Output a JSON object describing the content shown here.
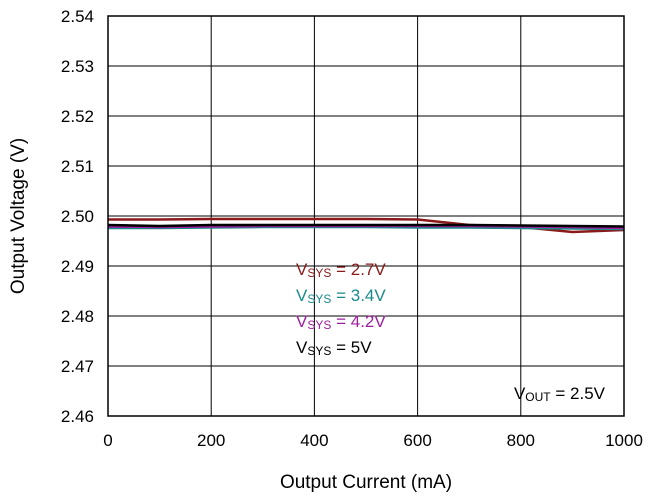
{
  "chart_data": {
    "type": "line",
    "title": "",
    "xlabel": "Output Current (mA)",
    "ylabel": "Output Voltage (V)",
    "xlim": [
      0,
      1000
    ],
    "ylim": [
      2.46,
      2.54
    ],
    "x_ticks": [
      "0",
      "200",
      "400",
      "600",
      "800",
      "1000"
    ],
    "y_ticks": [
      "2.46",
      "2.47",
      "2.48",
      "2.49",
      "2.50",
      "2.51",
      "2.52",
      "2.53",
      "2.54"
    ],
    "grid": true,
    "series": [
      {
        "name": "VSYS = 2.7V",
        "label_prefix": "V",
        "label_sub": "SYS",
        "label_suffix": " = 2.7V",
        "color": "#8b1a1a",
        "x": [
          0,
          100,
          200,
          300,
          400,
          500,
          600,
          700,
          800,
          900,
          1000
        ],
        "y": [
          2.4993,
          2.4993,
          2.4994,
          2.4994,
          2.4994,
          2.4994,
          2.4993,
          2.4982,
          2.4978,
          2.4968,
          2.4972
        ]
      },
      {
        "name": "VSYS = 3.4V",
        "label_prefix": "V",
        "label_sub": "SYS",
        "label_suffix": " = 3.4V",
        "color": "#1a8a8a",
        "x": [
          0,
          100,
          200,
          300,
          400,
          500,
          600,
          700,
          800,
          900,
          1000
        ],
        "y": [
          2.4976,
          2.4976,
          2.4977,
          2.4978,
          2.4978,
          2.4978,
          2.4977,
          2.4977,
          2.4976,
          2.4975,
          2.4974
        ]
      },
      {
        "name": "VSYS = 4.2V",
        "label_prefix": "V",
        "label_sub": "SYS",
        "label_suffix": " = 4.2V",
        "color": "#a020a0",
        "x": [
          0,
          100,
          200,
          300,
          400,
          500,
          600,
          700,
          800,
          900,
          1000
        ],
        "y": [
          2.4979,
          2.4978,
          2.4979,
          2.498,
          2.498,
          2.498,
          2.498,
          2.498,
          2.4979,
          2.4978,
          2.4976
        ]
      },
      {
        "name": "VSYS = 5V",
        "label_prefix": "V",
        "label_sub": "SYS",
        "label_suffix": " = 5V",
        "color": "#000000",
        "x": [
          0,
          100,
          200,
          300,
          400,
          500,
          600,
          700,
          800,
          900,
          1000
        ],
        "y": [
          2.4982,
          2.498,
          2.4982,
          2.4982,
          2.4982,
          2.4982,
          2.4982,
          2.4982,
          2.4981,
          2.498,
          2.4979
        ]
      }
    ],
    "annotation": {
      "prefix": "V",
      "sub": "OUT",
      "suffix": " = 2.5V"
    }
  }
}
